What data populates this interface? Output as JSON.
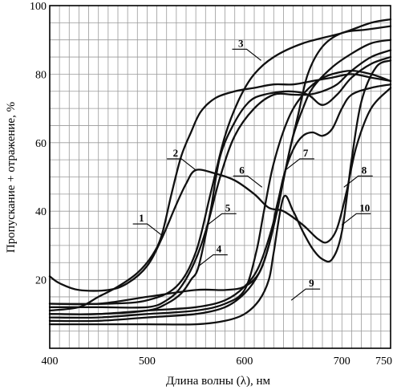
{
  "chart_data": {
    "type": "line",
    "title": "",
    "xlabel": "Длина волны (λ), нм",
    "ylabel": "Пропускание + отражение, %",
    "xlim": [
      400,
      750
    ],
    "ylim": [
      0,
      100
    ],
    "grid": true,
    "x_ticks": [
      {
        "value": 400,
        "label": "400"
      },
      {
        "value": 500,
        "label": "500"
      },
      {
        "value": 600,
        "label": "600"
      },
      {
        "value": 700,
        "label": "700"
      },
      {
        "value": 750,
        "label": "750"
      }
    ],
    "y_ticks": [
      {
        "value": 20,
        "label": "20"
      },
      {
        "value": 40,
        "label": "40"
      },
      {
        "value": 60,
        "label": "60"
      },
      {
        "value": 80,
        "label": "80"
      },
      {
        "value": 100,
        "label": "100"
      }
    ],
    "series": [
      {
        "name": "1",
        "label_at": {
          "x": 515,
          "y": 33
        },
        "label_side": "left",
        "points": [
          [
            400,
            11
          ],
          [
            430,
            12
          ],
          [
            450,
            15
          ],
          [
            470,
            18
          ],
          [
            490,
            22
          ],
          [
            505,
            27
          ],
          [
            515,
            33
          ],
          [
            525,
            45
          ],
          [
            535,
            56
          ],
          [
            545,
            63
          ],
          [
            555,
            69
          ],
          [
            570,
            73
          ],
          [
            590,
            75
          ],
          [
            610,
            76
          ],
          [
            630,
            77
          ],
          [
            650,
            77
          ],
          [
            670,
            78
          ],
          [
            690,
            79
          ],
          [
            710,
            80
          ],
          [
            730,
            79
          ],
          [
            750,
            78
          ]
        ]
      },
      {
        "name": "2",
        "label_at": {
          "x": 550,
          "y": 52
        },
        "label_side": "left",
        "points": [
          [
            400,
            21
          ],
          [
            410,
            19
          ],
          [
            430,
            17
          ],
          [
            460,
            17
          ],
          [
            480,
            19
          ],
          [
            500,
            24
          ],
          [
            515,
            32
          ],
          [
            530,
            42
          ],
          [
            540,
            48
          ],
          [
            550,
            52
          ],
          [
            570,
            51
          ],
          [
            590,
            49
          ],
          [
            610,
            45
          ],
          [
            625,
            41
          ],
          [
            640,
            40
          ],
          [
            660,
            36
          ],
          [
            675,
            32
          ],
          [
            685,
            31
          ],
          [
            695,
            35
          ],
          [
            705,
            46
          ],
          [
            715,
            59
          ],
          [
            730,
            70
          ],
          [
            750,
            76
          ]
        ]
      },
      {
        "name": "3",
        "label_at": {
          "x": 617,
          "y": 84
        },
        "label_side": "left",
        "points": [
          [
            400,
            13
          ],
          [
            460,
            13
          ],
          [
            500,
            14
          ],
          [
            530,
            18
          ],
          [
            550,
            28
          ],
          [
            565,
            45
          ],
          [
            580,
            62
          ],
          [
            595,
            73
          ],
          [
            610,
            80
          ],
          [
            630,
            85
          ],
          [
            660,
            89
          ],
          [
            700,
            92
          ],
          [
            730,
            95
          ],
          [
            750,
            96
          ]
        ]
      },
      {
        "name": "4",
        "label_at": {
          "x": 553,
          "y": 24
        },
        "label_side": "right",
        "points": [
          [
            400,
            10
          ],
          [
            450,
            10
          ],
          [
            500,
            11
          ],
          [
            520,
            13
          ],
          [
            535,
            16
          ],
          [
            545,
            20
          ],
          [
            553,
            24
          ],
          [
            565,
            40
          ],
          [
            575,
            56
          ],
          [
            590,
            66
          ],
          [
            605,
            72
          ],
          [
            620,
            74
          ],
          [
            645,
            75
          ],
          [
            665,
            74
          ],
          [
            680,
            71
          ],
          [
            695,
            74
          ],
          [
            710,
            79
          ],
          [
            730,
            83
          ],
          [
            750,
            85
          ]
        ]
      },
      {
        "name": "5",
        "label_at": {
          "x": 562,
          "y": 36
        },
        "label_side": "right",
        "points": [
          [
            400,
            12
          ],
          [
            450,
            12
          ],
          [
            500,
            12
          ],
          [
            520,
            14
          ],
          [
            535,
            18
          ],
          [
            550,
            26
          ],
          [
            562,
            36
          ],
          [
            575,
            50
          ],
          [
            590,
            62
          ],
          [
            610,
            70
          ],
          [
            630,
            74
          ],
          [
            650,
            74
          ],
          [
            665,
            74
          ],
          [
            680,
            75
          ],
          [
            695,
            77
          ],
          [
            710,
            81
          ],
          [
            730,
            85
          ],
          [
            750,
            87
          ]
        ]
      },
      {
        "name": "6",
        "label_at": {
          "x": 618,
          "y": 47
        },
        "label_side": "left",
        "points": [
          [
            400,
            9
          ],
          [
            450,
            9
          ],
          [
            500,
            10
          ],
          [
            550,
            11
          ],
          [
            580,
            13
          ],
          [
            600,
            17
          ],
          [
            612,
            28
          ],
          [
            620,
            40
          ],
          [
            630,
            54
          ],
          [
            645,
            67
          ],
          [
            660,
            74
          ],
          [
            675,
            78
          ],
          [
            690,
            80
          ],
          [
            710,
            81
          ],
          [
            730,
            80
          ],
          [
            750,
            78
          ]
        ]
      },
      {
        "name": "7",
        "label_at": {
          "x": 642,
          "y": 52
        },
        "label_side": "right",
        "points": [
          [
            400,
            8
          ],
          [
            450,
            8
          ],
          [
            500,
            9
          ],
          [
            550,
            10
          ],
          [
            580,
            12
          ],
          [
            600,
            16
          ],
          [
            615,
            22
          ],
          [
            625,
            30
          ],
          [
            632,
            40
          ],
          [
            642,
            52
          ],
          [
            650,
            62
          ],
          [
            660,
            70
          ],
          [
            670,
            76
          ],
          [
            690,
            82
          ],
          [
            710,
            86
          ],
          [
            730,
            89
          ],
          [
            750,
            90
          ]
        ]
      },
      {
        "name": "8",
        "label_at": {
          "x": 702,
          "y": 47
        },
        "label_side": "right",
        "points": [
          [
            400,
            10
          ],
          [
            450,
            10
          ],
          [
            500,
            11
          ],
          [
            550,
            12
          ],
          [
            580,
            14
          ],
          [
            600,
            18
          ],
          [
            615,
            24
          ],
          [
            630,
            37
          ],
          [
            640,
            50
          ],
          [
            650,
            58
          ],
          [
            660,
            62
          ],
          [
            670,
            63
          ],
          [
            680,
            62
          ],
          [
            690,
            64
          ],
          [
            700,
            70
          ],
          [
            710,
            74
          ],
          [
            730,
            76
          ],
          [
            750,
            77
          ]
        ]
      },
      {
        "name": "9",
        "label_at": {
          "x": 648,
          "y": 14
        },
        "label_side": "right",
        "points": [
          [
            400,
            13
          ],
          [
            450,
            13
          ],
          [
            500,
            15
          ],
          [
            550,
            17
          ],
          [
            580,
            17
          ],
          [
            600,
            18
          ],
          [
            615,
            22
          ],
          [
            625,
            30
          ],
          [
            635,
            42
          ],
          [
            645,
            56
          ],
          [
            655,
            68
          ],
          [
            665,
            80
          ],
          [
            680,
            88
          ],
          [
            700,
            92
          ],
          [
            725,
            93
          ],
          [
            750,
            94
          ]
        ]
      },
      {
        "name": "10",
        "label_at": {
          "x": 700,
          "y": 36
        },
        "label_side": "right",
        "points": [
          [
            400,
            7
          ],
          [
            450,
            7
          ],
          [
            500,
            7
          ],
          [
            550,
            7
          ],
          [
            580,
            8
          ],
          [
            600,
            10
          ],
          [
            615,
            14
          ],
          [
            625,
            20
          ],
          [
            630,
            28
          ],
          [
            640,
            44
          ],
          [
            650,
            40
          ],
          [
            660,
            34
          ],
          [
            670,
            29
          ],
          [
            680,
            26
          ],
          [
            690,
            26
          ],
          [
            700,
            34
          ],
          [
            710,
            55
          ],
          [
            720,
            72
          ],
          [
            735,
            82
          ],
          [
            750,
            84
          ]
        ]
      }
    ]
  }
}
